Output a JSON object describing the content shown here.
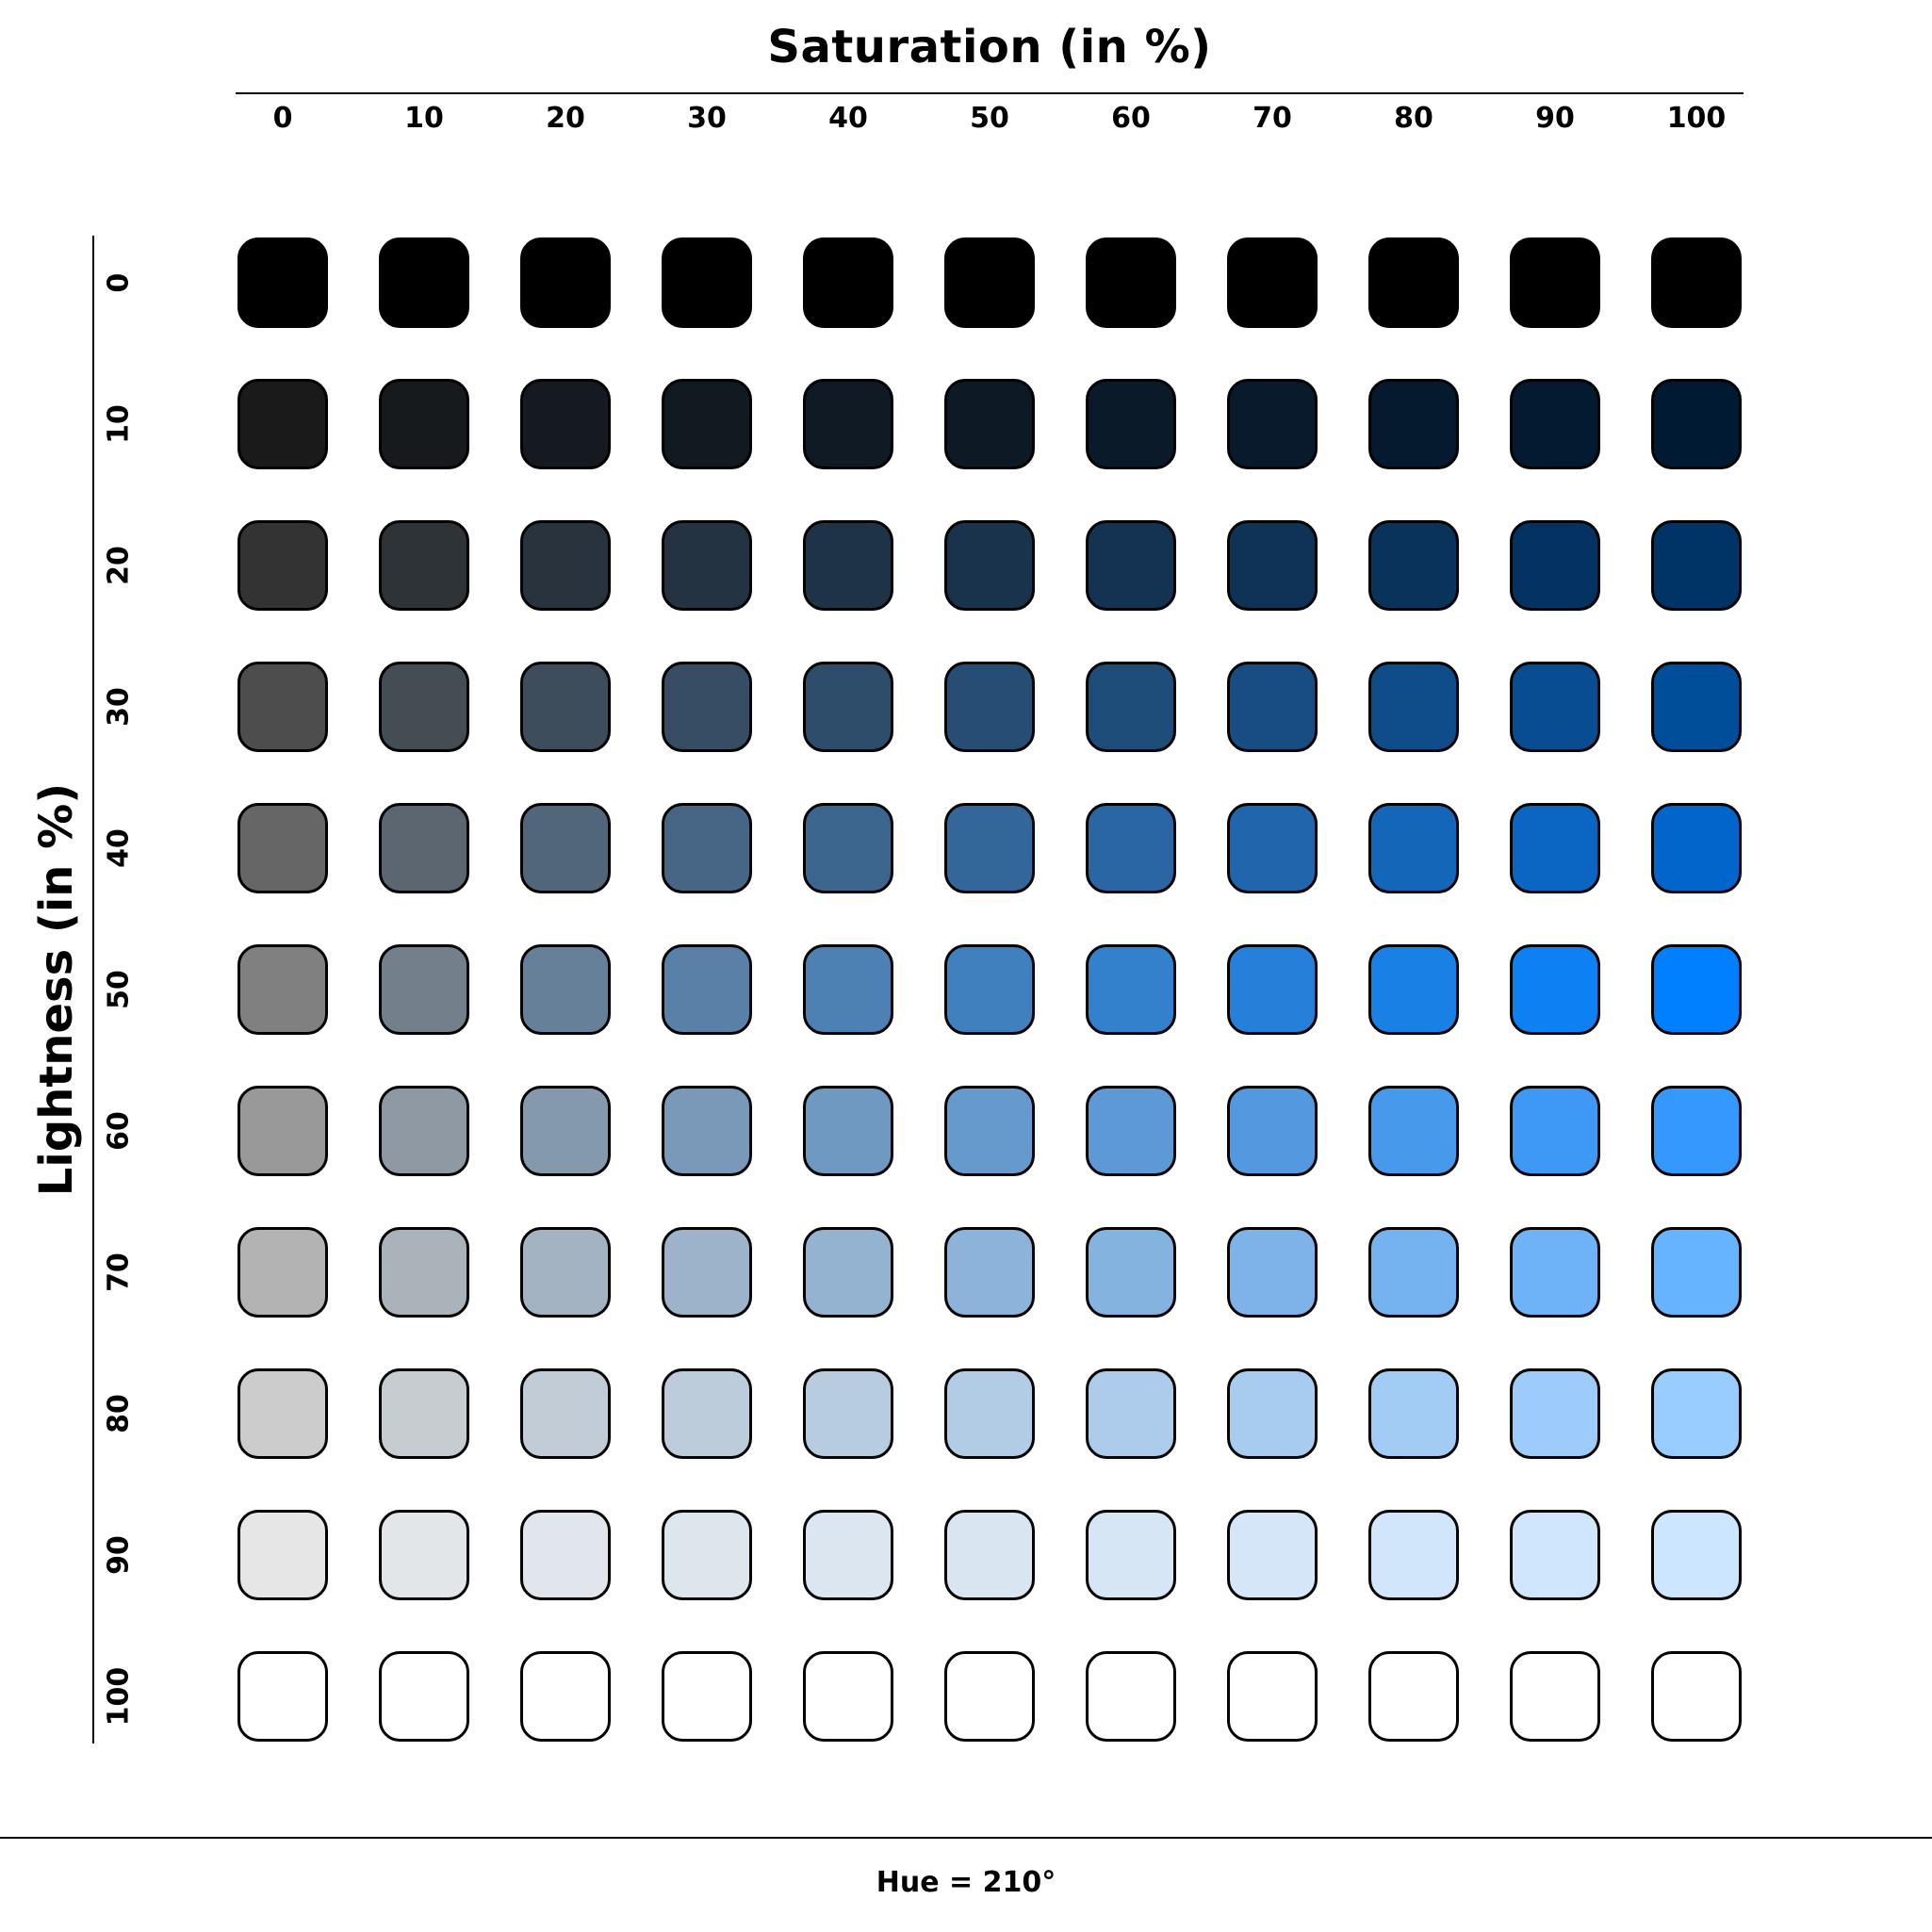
{
  "x_axis": {
    "title": "Saturation (in %)",
    "ticks": [
      "0",
      "10",
      "20",
      "30",
      "40",
      "50",
      "60",
      "70",
      "80",
      "90",
      "100"
    ]
  },
  "y_axis": {
    "title": "Lightness (in %)",
    "ticks": [
      "0",
      "10",
      "20",
      "30",
      "40",
      "50",
      "60",
      "70",
      "80",
      "90",
      "100"
    ]
  },
  "hue_caption": "Hue = 210°",
  "grid": {
    "hue": 210,
    "saturation_values": [
      0,
      10,
      20,
      30,
      40,
      50,
      60,
      70,
      80,
      90,
      100
    ],
    "lightness_values": [
      0,
      10,
      20,
      30,
      40,
      50,
      60,
      70,
      80,
      90,
      100
    ],
    "swatch_border_color": "#000000"
  }
}
